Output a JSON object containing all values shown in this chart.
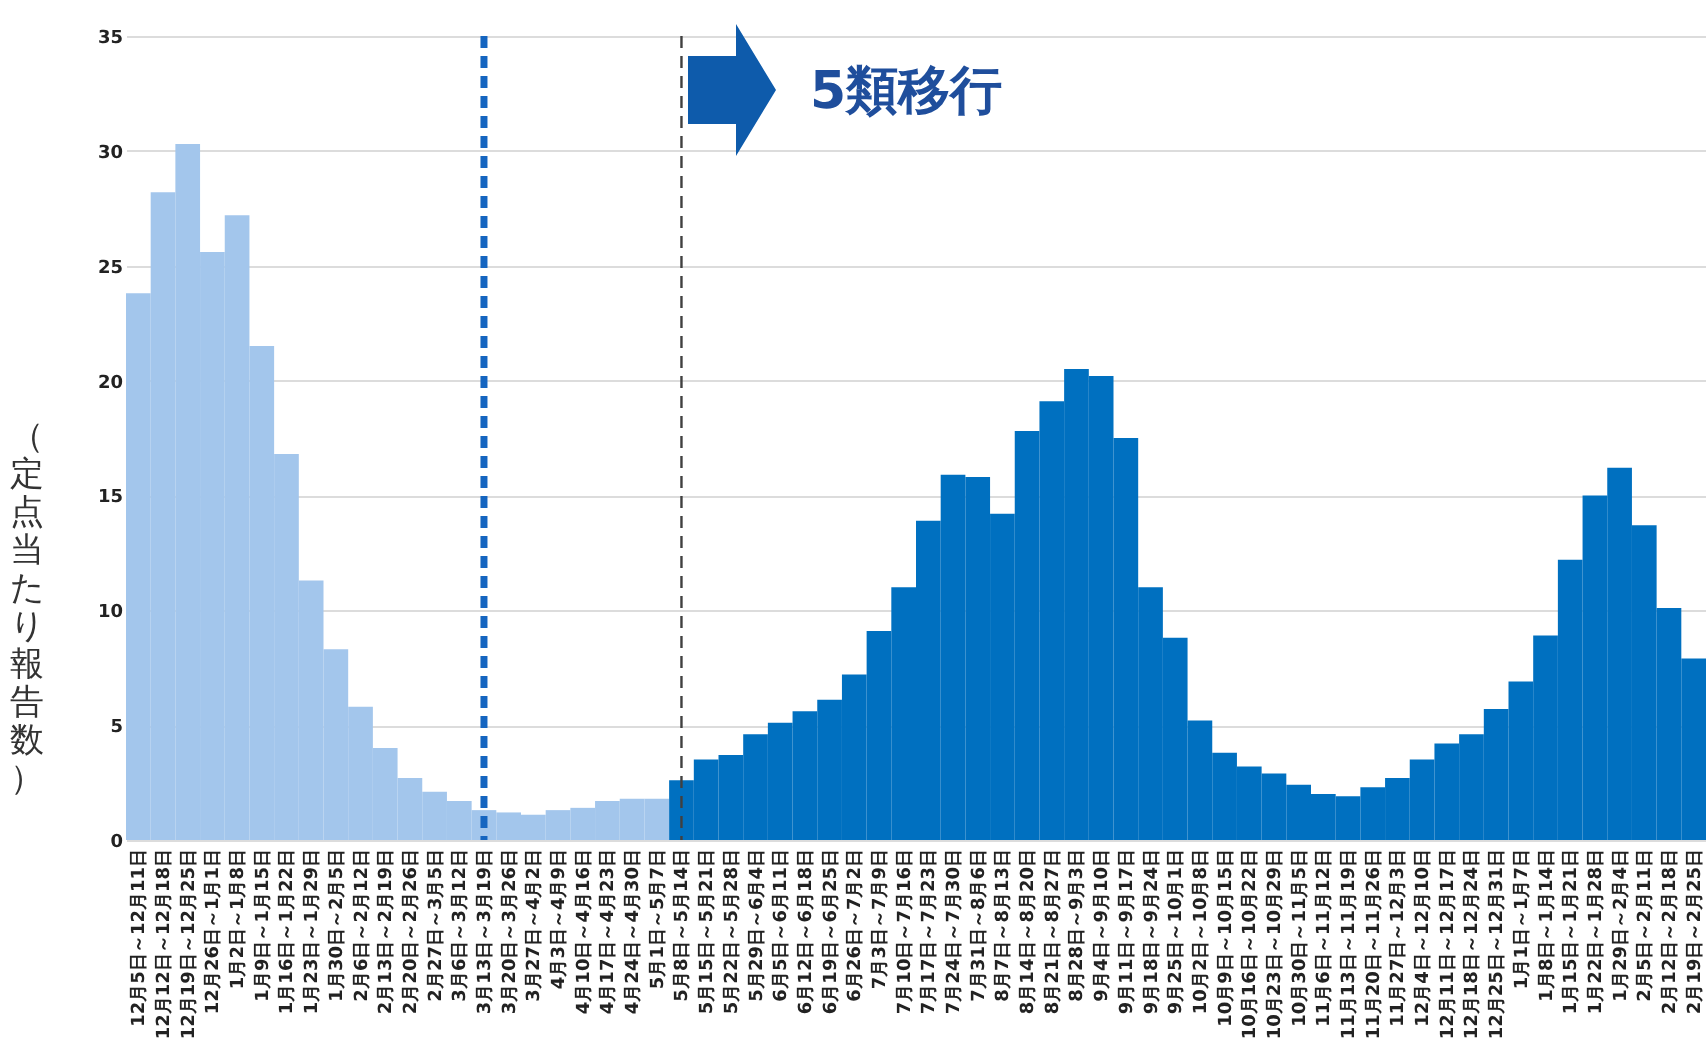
{
  "chart_data": {
    "type": "bar",
    "ylabel": "（定点当たり報告数）",
    "categories": [
      "12月5日～12月11日",
      "12月12日～12月18日",
      "12月19日～12月25日",
      "12月26日～1月1日",
      "1月2日～1月8日",
      "1月9日～1月15日",
      "1月16日～1月22日",
      "1月23日～1月29日",
      "1月30日～2月5日",
      "2月6日～2月12日",
      "2月13日～2月19日",
      "2月20日～2月26日",
      "2月27日～3月5日",
      "3月6日～3月12日",
      "3月13日～3月19日",
      "3月20日～3月26日",
      "3月27日～4月2日",
      "4月3日～4月9日",
      "4月10日～4月16日",
      "4月17日～4月23日",
      "4月24日～4月30日",
      "5月1日～5月7日",
      "5月8日～5月14日",
      "5月15日～5月21日",
      "5月22日～5月28日",
      "5月29日～6月4日",
      "6月5日～6月11日",
      "6月12日～6月18日",
      "6月19日～6月25日",
      "6月26日～7月2日",
      "7月3日～7月9日",
      "7月10日～7月16日",
      "7月17日～7月23日",
      "7月24日～7月30日",
      "7月31日～8月6日",
      "8月7日～8月13日",
      "8月14日～8月20日",
      "8月21日～8月27日",
      "8月28日～9月3日",
      "9月4日～9月10日",
      "9月11日～9月17日",
      "9月18日～9月24日",
      "9月25日～10月1日",
      "10月2日～10月8日",
      "10月9日～10月15日",
      "10月16日～10月22日",
      "10月23日～10月29日",
      "10月30日～11月5日",
      "11月6日～11月12日",
      "11月13日～11月19日",
      "11月20日～11月26日",
      "11月27日～12月3日",
      "12月4日～12月10日",
      "12月11日～12月17日",
      "12月18日～12月24日",
      "12月25日～12月31日",
      "1月1日～1月7日",
      "1月8日～1月14日",
      "1月15日～1月21日",
      "1月22日～1月28日",
      "1月29日～2月4日",
      "2月5日～2月11日",
      "2月12日～2月18日",
      "2月19日～2月25日"
    ],
    "series": [
      {
        "color": "#a3c6ec",
        "values": [
          23.8,
          28.2,
          30.3,
          25.6,
          27.2,
          21.5,
          16.8,
          11.3,
          8.3,
          5.8,
          4.0,
          2.7,
          2.1,
          1.7,
          1.3,
          1.2,
          1.1,
          1.3,
          1.4,
          1.7,
          1.8,
          1.8,
          null,
          null,
          null,
          null,
          null,
          null,
          null,
          null,
          null,
          null,
          null,
          null,
          null,
          null,
          null,
          null,
          null,
          null,
          null,
          null,
          null,
          null,
          null,
          null,
          null,
          null,
          null,
          null,
          null,
          null,
          null,
          null,
          null,
          null,
          null,
          null,
          null,
          null,
          null,
          null,
          null,
          null
        ]
      },
      {
        "color": "#0070c0",
        "values": [
          null,
          null,
          null,
          null,
          null,
          null,
          null,
          null,
          null,
          null,
          null,
          null,
          null,
          null,
          null,
          null,
          null,
          null,
          null,
          null,
          null,
          null,
          2.6,
          3.5,
          3.7,
          4.6,
          5.1,
          5.6,
          6.1,
          7.2,
          9.1,
          11.0,
          13.9,
          15.9,
          15.8,
          14.2,
          17.8,
          19.1,
          20.5,
          20.2,
          17.5,
          11.0,
          8.8,
          5.2,
          3.8,
          3.2,
          2.9,
          2.4,
          2.0,
          1.9,
          2.3,
          2.7,
          3.5,
          4.2,
          4.6,
          5.7,
          6.9,
          8.9,
          12.2,
          15.0,
          16.2,
          13.7,
          10.1,
          7.9
        ]
      }
    ],
    "ylim": [
      0,
      35
    ],
    "yticks": [
      0,
      5,
      10,
      15,
      20,
      25,
      30,
      35
    ],
    "grid": "y",
    "ref_lines": [
      {
        "axis": "x",
        "value": "3月13日～3月19日",
        "color": "#1565c0",
        "line_style": "dashed"
      },
      {
        "axis": "x",
        "value": "5月8日～5月14日",
        "color": "#404040",
        "line_style": "dashed"
      }
    ],
    "annotations": [
      "5類移行"
    ]
  }
}
